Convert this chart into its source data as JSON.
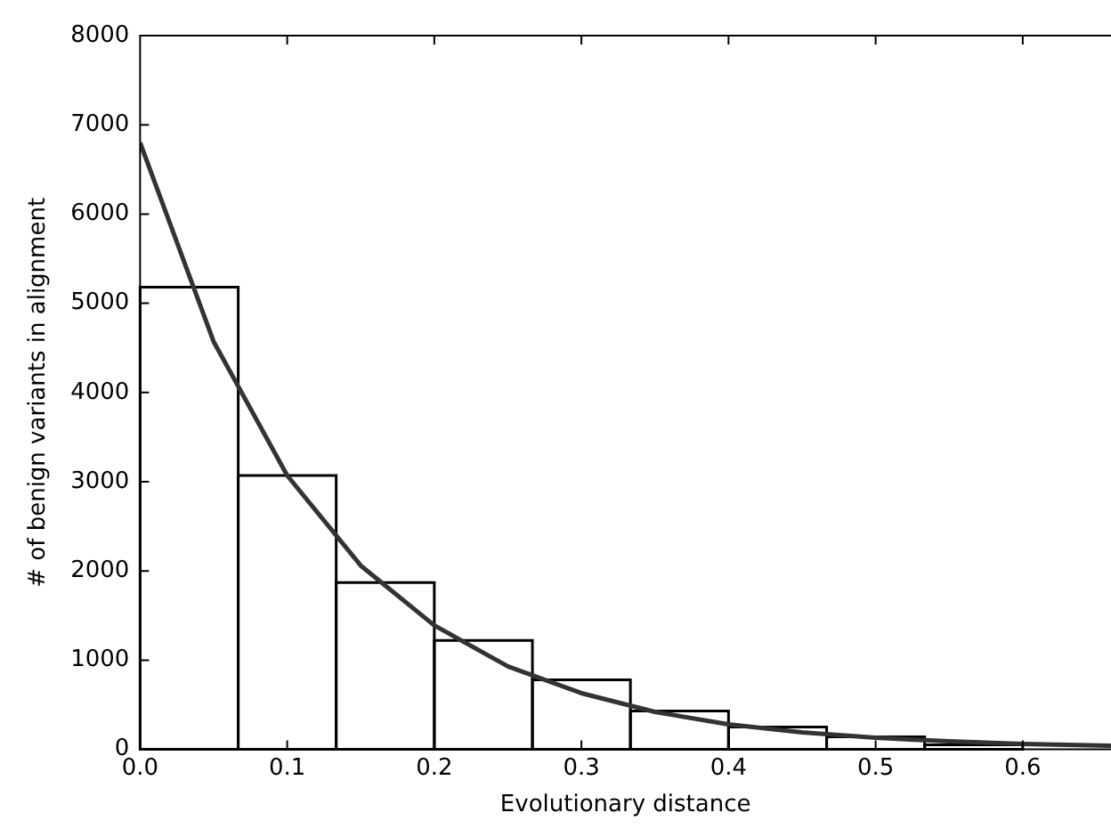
{
  "chart_data": {
    "type": "histogram",
    "xlabel": "Evolutionary distance",
    "ylabel": "# of benign variants in alignment",
    "xlim": [
      0,
      0.66
    ],
    "ylim": [
      0,
      8000
    ],
    "xticks": [
      {
        "value": 0,
        "label": "0.0"
      },
      {
        "value": 0.1,
        "label": "0.1"
      },
      {
        "value": 0.2,
        "label": "0.2"
      },
      {
        "value": 0.3,
        "label": "0.3"
      },
      {
        "value": 0.4,
        "label": "0.4"
      },
      {
        "value": 0.5,
        "label": "0.5"
      },
      {
        "value": 0.6,
        "label": "0.6"
      }
    ],
    "yticks": [
      0,
      1000,
      2000,
      3000,
      4000,
      5000,
      6000,
      7000,
      8000
    ],
    "grid": false,
    "legend": false,
    "bins": [
      0,
      0.0667,
      0.1333,
      0.2,
      0.2667,
      0.3333,
      0.4,
      0.4667,
      0.5333,
      0.6
    ],
    "values": [
      5180,
      3070,
      1870,
      1220,
      780,
      430,
      250,
      140,
      50
    ],
    "color": "#000000",
    "series": [
      {
        "type": "line",
        "color": "#333333",
        "marker": "none",
        "x": [
          0,
          0.05,
          0.1,
          0.15,
          0.2,
          0.25,
          0.3,
          0.35,
          0.4,
          0.45,
          0.5,
          0.55,
          0.6,
          0.66
        ],
        "values": [
          6800,
          4570,
          3070,
          2060,
          1390,
          930,
          630,
          420,
          280,
          190,
          130,
          90,
          60,
          40
        ]
      }
    ]
  }
}
